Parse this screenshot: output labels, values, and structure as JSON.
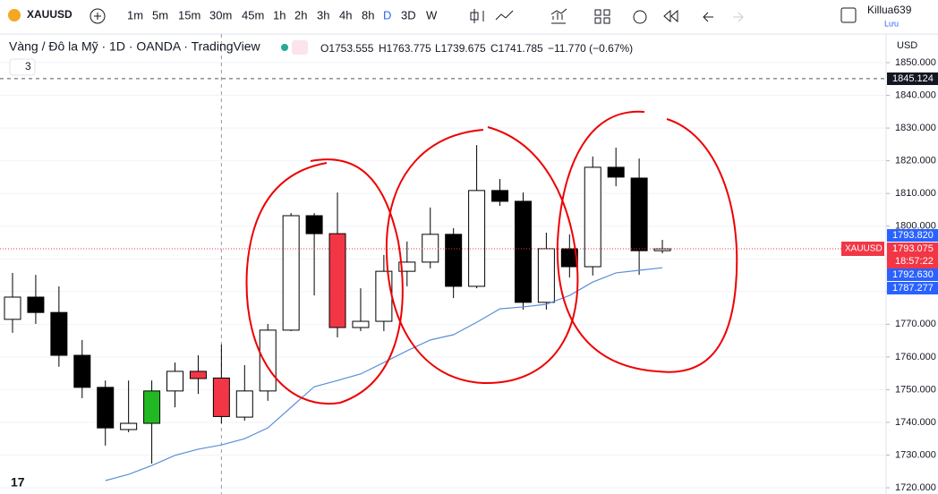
{
  "toolbar": {
    "symbol": "XAUUSD",
    "intervals": [
      "1m",
      "5m",
      "15m",
      "30m",
      "45m",
      "1h",
      "2h",
      "3h",
      "4h",
      "8h",
      "D",
      "3D",
      "W"
    ],
    "user": "Killua639",
    "save": "Lưu"
  },
  "header": {
    "title": "Vàng / Đô la Mỹ · 1D · OANDA · TradingView",
    "open": "O1753.555",
    "high": "H1763.775",
    "low": "L1739.675",
    "close": "C1741.785",
    "change": "−11.770 (−0.67%)",
    "indicator_count": "3"
  },
  "chart_data": {
    "type": "candlestick",
    "currency": "USD",
    "open": [
      1771.5,
      1778.3,
      1773.6,
      1760.5,
      1750.7,
      1737.8,
      1739.7,
      1749.6,
      1755.6,
      1753.555,
      1741.6,
      1749.6,
      1768.2,
      1803.2,
      1797.7,
      1769.0,
      1770.9,
      1786.2,
      1789.0,
      1797.5,
      1781.6,
      1810.9,
      1807.6,
      1776.7,
      1793.1,
      1787.6,
      1818.0,
      1814.7,
      1792.5
    ],
    "high": [
      1785.7,
      1785.1,
      1781.6,
      1765.2,
      1752.8,
      1752.8,
      1752.8,
      1758.3,
      1760.5,
      1763.775,
      1757.5,
      1770.1,
      1804.0,
      1804.0,
      1810.3,
      1781.0,
      1791.2,
      1795.3,
      1805.7,
      1799.4,
      1824.8,
      1814.4,
      1810.3,
      1798.0,
      1797.5,
      1821.3,
      1824.0,
      1820.7,
      1795.8
    ],
    "low": [
      1767.4,
      1770.1,
      1757.0,
      1747.4,
      1732.9,
      1737.0,
      1727.4,
      1744.6,
      1748.7,
      1739.675,
      1740.5,
      1746.6,
      1767.9,
      1778.8,
      1766.0,
      1767.9,
      1767.9,
      1781.6,
      1787.1,
      1778.0,
      1781.0,
      1806.2,
      1774.5,
      1774.5,
      1784.3,
      1784.9,
      1812.2,
      1785.1,
      1791.7
    ],
    "close": [
      1778.3,
      1773.6,
      1760.5,
      1750.7,
      1738.3,
      1739.7,
      1749.6,
      1755.6,
      1753.4,
      1741.785,
      1749.6,
      1768.2,
      1803.2,
      1797.7,
      1769.0,
      1770.9,
      1786.2,
      1789.0,
      1797.5,
      1781.6,
      1810.9,
      1807.6,
      1776.7,
      1793.1,
      1787.6,
      1818.0,
      1815.0,
      1792.5,
      1793.075
    ],
    "candle_colors": [
      "#ffffff",
      "#000000",
      "#000000",
      "#000000",
      "#000000",
      "#ffffff",
      "#22b822",
      "#ffffff",
      "#f23645",
      "#f23645",
      "#ffffff",
      "#ffffff",
      "#ffffff",
      "#000000",
      "#f23645",
      "#ffffff",
      "#ffffff",
      "#ffffff",
      "#ffffff",
      "#000000",
      "#ffffff",
      "#000000",
      "#000000",
      "#ffffff",
      "#000000",
      "#ffffff",
      "#000000",
      "#000000",
      "#ffffff"
    ],
    "ma": {
      "color": "#5b8fd8",
      "values": [
        null,
        null,
        null,
        null,
        1722.2,
        1724.1,
        1726.8,
        1729.9,
        1731.8,
        1733.1,
        1735.0,
        1738.3,
        1744.6,
        1750.9,
        1752.8,
        1754.8,
        1758.3,
        1761.9,
        1765.2,
        1766.8,
        1770.6,
        1774.7,
        1775.3,
        1776.1,
        1778.8,
        1782.9,
        1785.7,
        1786.5,
        1787.277
      ]
    },
    "ylim": [
      1718,
      1858
    ],
    "yticks": [
      {
        "value": 1720,
        "label": "1720.000"
      },
      {
        "value": 1730,
        "label": "1730.000"
      },
      {
        "value": 1740,
        "label": "1740.000"
      },
      {
        "value": 1750,
        "label": "1750.000"
      },
      {
        "value": 1760,
        "label": "1760.000"
      },
      {
        "value": 1770,
        "label": "1770.000"
      },
      {
        "value": 1780,
        "label": "1780.000"
      },
      {
        "value": 1790,
        "label": "1790.000"
      },
      {
        "value": 1800,
        "label": "1800.000"
      },
      {
        "value": 1810,
        "label": "1810.000"
      },
      {
        "value": 1820,
        "label": "1820.000"
      },
      {
        "value": 1830,
        "label": "1830.000"
      },
      {
        "value": 1840,
        "label": "1840.000"
      },
      {
        "value": 1850,
        "label": "1850.000"
      }
    ],
    "price_labels": [
      {
        "value": 1845.124,
        "label": "1845.124",
        "color": "#131722"
      },
      {
        "value": 1793.82,
        "label": "1793.820",
        "color": "#2962ff"
      },
      {
        "value": 1793.075,
        "label": "1793.075",
        "color": "#f23645"
      },
      {
        "value": 1792.63,
        "label": "1792.630",
        "color": "#2962ff"
      },
      {
        "value": 1787.277,
        "label": "1787.277",
        "color": "#2962ff"
      }
    ],
    "last_price_tag": "XAUUSD",
    "countdown": "18:57:22",
    "crosshair_index": 9
  }
}
